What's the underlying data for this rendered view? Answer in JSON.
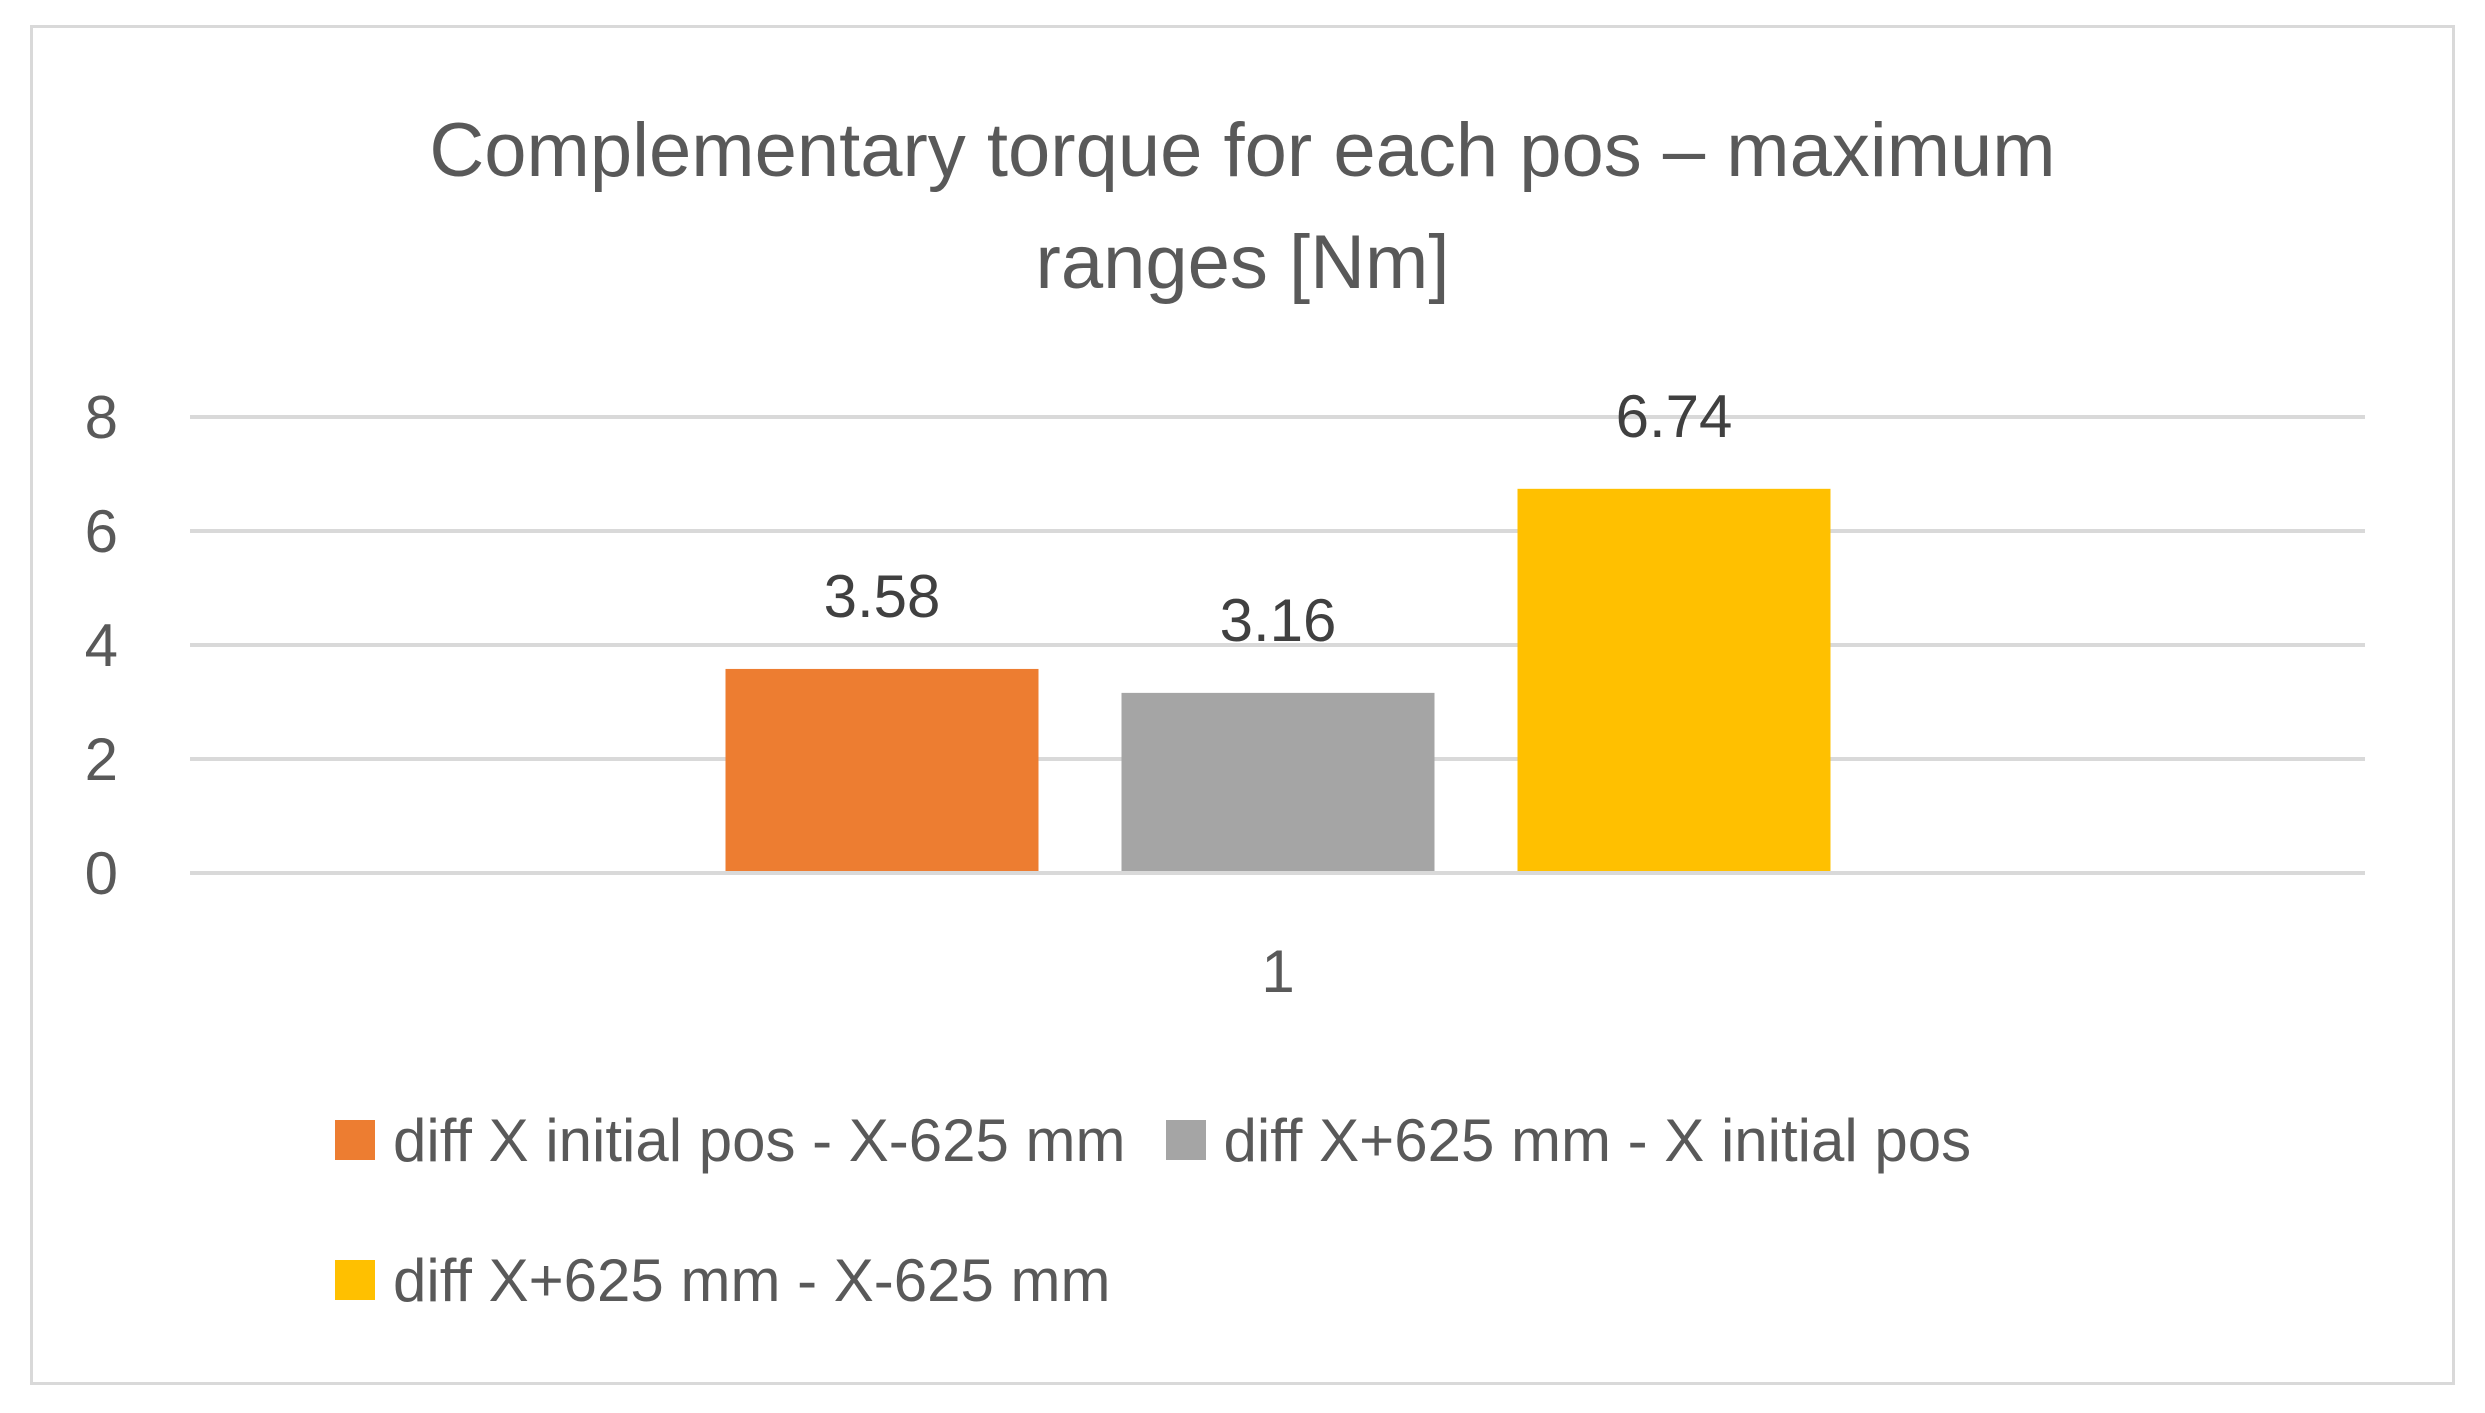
{
  "chart_data": {
    "type": "bar",
    "title_lines": [
      "Complementary torque for each pos – maximum",
      "ranges [Nm]"
    ],
    "categories": [
      "1"
    ],
    "series": [
      {
        "name": "diff X initial pos - X-625 mm",
        "values": [
          3.58
        ],
        "color": "#ED7D31",
        "label": "3.58"
      },
      {
        "name": "diff X+625 mm - X initial pos",
        "values": [
          3.16
        ],
        "color": "#A5A5A5",
        "label": "3.16"
      },
      {
        "name": "diff X+625 mm - X-625 mm",
        "values": [
          6.74
        ],
        "color": "#FFC000",
        "label": "6.74"
      }
    ],
    "ylim": [
      0,
      8
    ],
    "yticks": [
      "0",
      "2",
      "4",
      "6",
      "8"
    ],
    "grid": true,
    "legend_position": "bottom"
  }
}
